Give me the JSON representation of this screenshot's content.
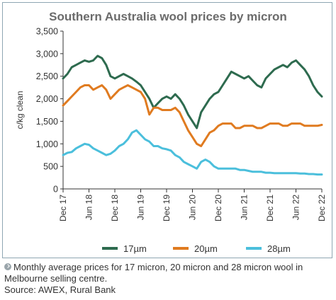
{
  "chart_data": {
    "type": "line",
    "title": "Southern Australia wool prices by micron",
    "ylabel": "c/kg clean",
    "xlabel": "",
    "ylim": [
      0,
      3500
    ],
    "yticks": [
      "0",
      "500",
      "1,000",
      "1,500",
      "2,000",
      "2,500",
      "3,000",
      "3,500"
    ],
    "ytick_values": [
      0,
      500,
      1000,
      1500,
      2000,
      2500,
      3000,
      3500
    ],
    "xticks": [
      "Dec 17",
      "Jun 18",
      "Dec 18",
      "Jun 19",
      "Dec 19",
      "Jun 20",
      "Dec 20",
      "Jun 21",
      "Dec 21",
      "Jun 22",
      "Dec 22"
    ],
    "xlim": [
      0,
      60
    ],
    "x_unit": "months since Dec 2017",
    "legend_position": "bottom",
    "grid": false,
    "series": [
      {
        "name": "17µm",
        "color": "#2e6b4f",
        "values": [
          2450,
          2550,
          2700,
          2750,
          2800,
          2850,
          2820,
          2850,
          2950,
          2900,
          2750,
          2500,
          2450,
          2500,
          2550,
          2500,
          2450,
          2380,
          2300,
          2150,
          2000,
          1800,
          1900,
          2000,
          2050,
          2000,
          2100,
          2000,
          1850,
          1650,
          1500,
          1350,
          1700,
          1850,
          2000,
          2100,
          2150,
          2300,
          2450,
          2600,
          2550,
          2500,
          2450,
          2500,
          2400,
          2300,
          2250,
          2450,
          2550,
          2650,
          2700,
          2750,
          2700,
          2800,
          2850,
          2750,
          2650,
          2500,
          2300,
          2150,
          2050
        ]
      },
      {
        "name": "20µm",
        "color": "#e07b20",
        "values": [
          1850,
          1950,
          2050,
          2150,
          2250,
          2300,
          2300,
          2200,
          2250,
          2300,
          2200,
          2000,
          2100,
          2200,
          2250,
          2300,
          2250,
          2200,
          2150,
          2000,
          1650,
          1800,
          1800,
          1750,
          1750,
          1750,
          1800,
          1700,
          1500,
          1300,
          1150,
          1000,
          950,
          1100,
          1250,
          1300,
          1400,
          1450,
          1450,
          1450,
          1350,
          1350,
          1400,
          1400,
          1400,
          1350,
          1350,
          1400,
          1450,
          1450,
          1450,
          1400,
          1400,
          1450,
          1450,
          1450,
          1400,
          1400,
          1400,
          1400,
          1420
        ]
      },
      {
        "name": "28µm",
        "color": "#4bbfdc",
        "values": [
          750,
          800,
          820,
          900,
          950,
          1000,
          980,
          900,
          850,
          800,
          750,
          780,
          850,
          950,
          1000,
          1100,
          1250,
          1300,
          1200,
          1100,
          1050,
          950,
          950,
          900,
          880,
          850,
          750,
          700,
          600,
          550,
          500,
          450,
          600,
          650,
          600,
          500,
          450,
          450,
          450,
          450,
          450,
          420,
          420,
          400,
          380,
          380,
          380,
          360,
          360,
          350,
          350,
          350,
          350,
          350,
          350,
          340,
          340,
          330,
          330,
          320,
          320
        ]
      }
    ]
  },
  "caption": {
    "text": "Monthly average prices for 17 micron, 20 micron and 28 micron wool in Melbourne selling centre.",
    "source": "Source: AWEX, Rural Bank"
  }
}
